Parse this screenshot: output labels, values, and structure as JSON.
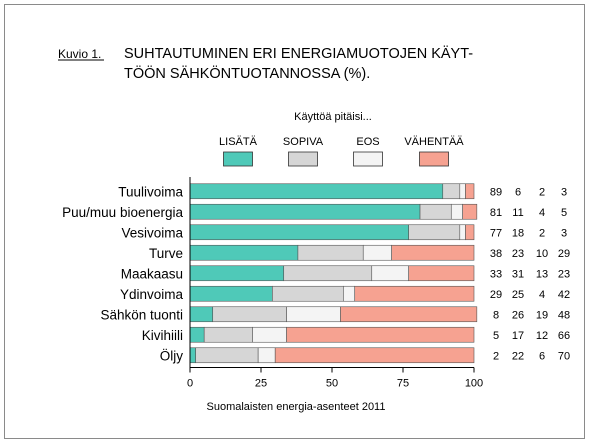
{
  "caption_label": "Kuvio 1.",
  "chart_data": {
    "type": "bar",
    "stacked": true,
    "orientation": "horizontal",
    "title_lines": [
      "SUHTAUTUMINEN ERI ENERGIAMUOTOJEN KÄYT-",
      "TÖÖN SÄHKÖNTUOTANNOSSA (%)."
    ],
    "legend_title": "Käyttöä pitäisi...",
    "legend_placement": "top",
    "source": "Suomalaisten energia-asenteet 2011",
    "categories": [
      "Tuulivoima",
      "Puu/muu bioenergia",
      "Vesivoima",
      "Turve",
      "Maakaasu",
      "Ydinvoima",
      "Sähkön tuonti",
      "Kivihiili",
      "Öljy"
    ],
    "series": [
      {
        "name": "LISÄTÄ",
        "color": "#4fc9b8",
        "values": [
          89,
          81,
          77,
          38,
          33,
          29,
          8,
          5,
          2
        ]
      },
      {
        "name": "SOPIVA",
        "color": "#d6d6d6",
        "values": [
          6,
          11,
          18,
          23,
          31,
          25,
          26,
          17,
          22
        ]
      },
      {
        "name": "EOS",
        "color": "#f4f4f4",
        "values": [
          2,
          4,
          2,
          10,
          13,
          4,
          19,
          12,
          6
        ]
      },
      {
        "name": "VÄHENTÄÄ",
        "color": "#f6a291",
        "values": [
          3,
          5,
          3,
          29,
          23,
          42,
          48,
          66,
          70
        ]
      }
    ],
    "xlim": [
      0,
      100
    ],
    "xticks": [
      0,
      25,
      50,
      75,
      100
    ],
    "grid": false
  }
}
